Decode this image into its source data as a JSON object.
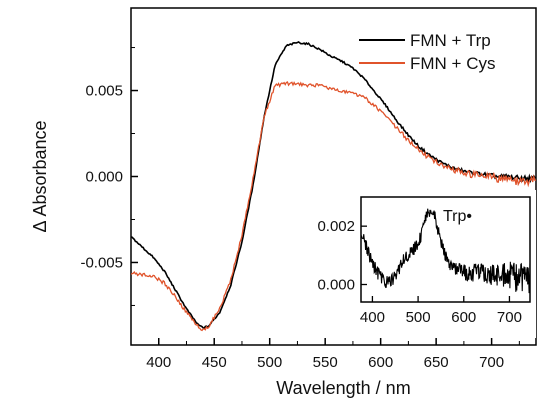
{
  "chart_data": [
    {
      "type": "line",
      "xlabel": "Wavelength / nm",
      "ylabel": "Δ Absorbance",
      "xlim": [
        375,
        740
      ],
      "ylim": [
        -0.0098,
        0.0098
      ],
      "xticks": [
        400,
        450,
        500,
        550,
        600,
        650,
        700
      ],
      "yticks": [
        -0.005,
        0.0,
        0.005
      ],
      "ytick_labels": [
        "-0.005",
        "0.000",
        "0.005"
      ],
      "legend_position": "top-right",
      "series": [
        {
          "name": "FMN + Trp",
          "color": "#000000",
          "x": [
            375,
            385,
            395,
            405,
            415,
            425,
            435,
            440,
            445,
            455,
            465,
            475,
            485,
            495,
            505,
            515,
            525,
            535,
            545,
            555,
            565,
            575,
            585,
            595,
            605,
            615,
            625,
            635,
            645,
            655,
            665,
            675,
            685,
            695,
            705,
            715,
            725,
            740
          ],
          "values": [
            -0.0035,
            -0.0041,
            -0.0047,
            -0.0055,
            -0.0066,
            -0.0077,
            -0.0086,
            -0.0088,
            -0.0087,
            -0.0079,
            -0.0063,
            -0.0038,
            -0.0005,
            0.0035,
            0.0065,
            0.0076,
            0.0078,
            0.0077,
            0.0074,
            0.007,
            0.0067,
            0.0063,
            0.0057,
            0.0049,
            0.0041,
            0.0032,
            0.0024,
            0.0017,
            0.0012,
            0.0008,
            0.0005,
            0.0003,
            0.0002,
            0.0001,
            0.0,
            0.0,
            -0.0001,
            -0.0001
          ]
        },
        {
          "name": "FMN + Cys",
          "color": "#e0532b",
          "x": [
            375,
            385,
            395,
            405,
            415,
            425,
            435,
            440,
            445,
            455,
            465,
            475,
            485,
            495,
            505,
            515,
            525,
            535,
            545,
            555,
            565,
            575,
            585,
            595,
            605,
            615,
            625,
            635,
            645,
            655,
            665,
            675,
            685,
            695,
            705,
            715,
            725,
            740
          ],
          "values": [
            -0.0056,
            -0.0057,
            -0.0058,
            -0.0062,
            -0.007,
            -0.0079,
            -0.0087,
            -0.0089,
            -0.0087,
            -0.0077,
            -0.006,
            -0.0034,
            -0.0001,
            0.0035,
            0.0053,
            0.0054,
            0.0054,
            0.0053,
            0.0053,
            0.0051,
            0.005,
            0.0048,
            0.0046,
            0.0041,
            0.0035,
            0.0028,
            0.0021,
            0.0015,
            0.001,
            0.0007,
            0.0004,
            0.0002,
            0.0001,
            0.0,
            -0.0001,
            -0.0002,
            -0.0003,
            -0.0003
          ]
        }
      ]
    },
    {
      "type": "line",
      "title": "Trp•",
      "xlim": [
        375,
        745
      ],
      "ylim": [
        -0.0006,
        0.003
      ],
      "xticks": [
        400,
        500,
        600,
        700
      ],
      "yticks": [
        0.0,
        0.002
      ],
      "ytick_labels": [
        "0.000",
        "0.002"
      ],
      "series": [
        {
          "color": "#000000",
          "x": [
            375,
            385,
            395,
            405,
            415,
            425,
            435,
            445,
            455,
            465,
            475,
            485,
            495,
            505,
            515,
            525,
            530,
            535,
            545,
            555,
            565,
            575,
            585,
            595,
            605,
            615,
            625,
            635,
            645,
            655,
            665,
            675,
            685,
            695,
            705,
            715,
            725,
            735,
            745
          ],
          "values": [
            0.0018,
            0.0014,
            0.0009,
            0.0006,
            0.0003,
            0.0001,
            0.0001,
            0.0002,
            0.0004,
            0.0008,
            0.001,
            0.0011,
            0.0013,
            0.0016,
            0.0022,
            0.0025,
            0.0025,
            0.0024,
            0.0018,
            0.0012,
            0.0008,
            0.0006,
            0.0005,
            0.0005,
            0.0004,
            0.0004,
            0.0004,
            0.0004,
            0.0003,
            0.0003,
            0.0003,
            0.0003,
            0.0003,
            0.0003,
            0.0003,
            0.0002,
            0.0002,
            0.0002,
            0.0002
          ]
        }
      ]
    }
  ]
}
